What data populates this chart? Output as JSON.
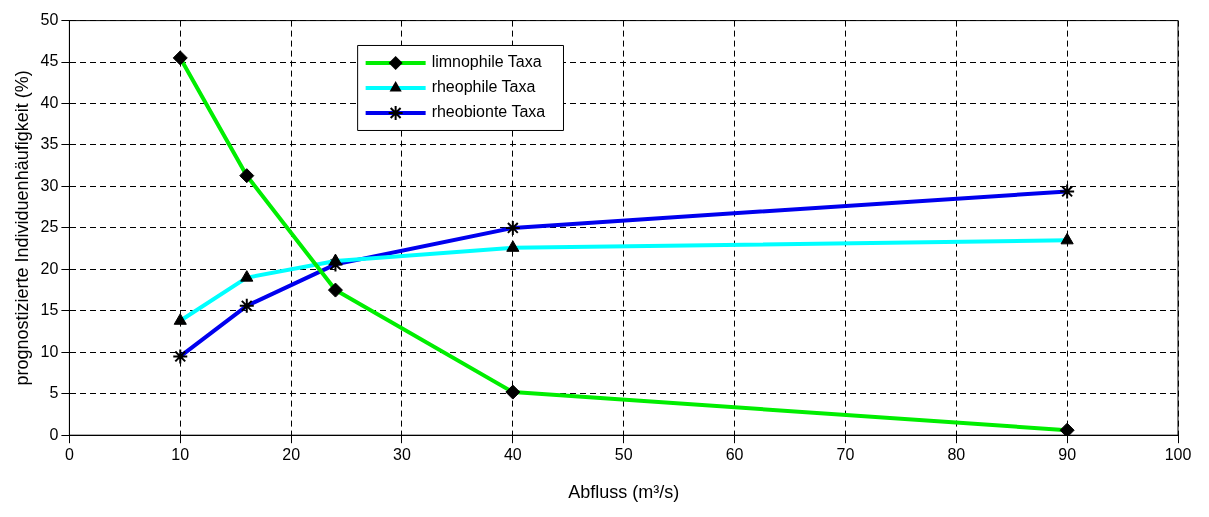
{
  "chart_data": {
    "type": "line",
    "xlabel": "Abfluss (m³/s)",
    "ylabel": "prognostizierte Individuenhäufigkeit (%)",
    "x": [
      10,
      16,
      24,
      40,
      90
    ],
    "series": [
      {
        "name": "limnophile Taxa",
        "color": "#00ee00",
        "marker": "diamond",
        "values": [
          45.5,
          31.3,
          17.5,
          5.2,
          0.6
        ]
      },
      {
        "name": "rheophile Taxa",
        "color": "#00ffff",
        "marker": "triangle",
        "values": [
          13.8,
          19.0,
          21.0,
          22.6,
          23.5
        ]
      },
      {
        "name": "rheobionte Taxa",
        "color": "#0000ee",
        "marker": "cross",
        "values": [
          9.5,
          15.6,
          20.6,
          25.0,
          29.4
        ]
      }
    ],
    "xlim": [
      0,
      100
    ],
    "xticks": [
      0,
      10,
      20,
      30,
      40,
      50,
      60,
      70,
      80,
      90,
      100
    ],
    "ylim": [
      0,
      50
    ],
    "yticks": [
      0,
      5,
      10,
      15,
      20,
      25,
      30,
      35,
      40,
      45,
      50
    ],
    "grid": true,
    "legend": "top",
    "line_style": "solid"
  }
}
